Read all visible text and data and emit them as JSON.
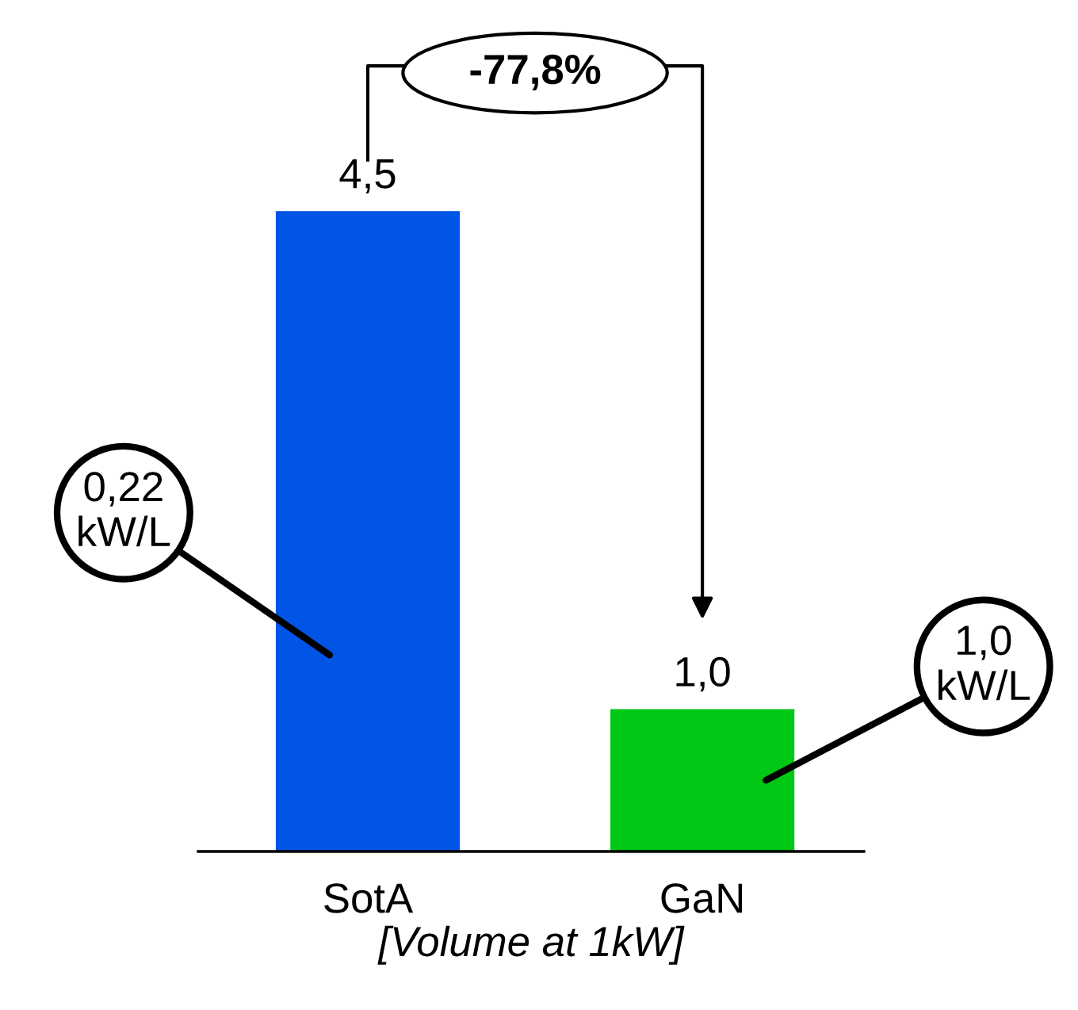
{
  "chart_data": {
    "type": "bar",
    "categories": [
      "SotA",
      "GaN"
    ],
    "values": [
      4.5,
      1.0
    ],
    "value_labels": [
      "4,5",
      "1,0"
    ],
    "colors": [
      "#0055e6",
      "#00c814"
    ],
    "xlabel": "[Volume at 1kW]",
    "annotations": [
      "0,22\nkW/L",
      "1,0\nkW/L",
      "-77,8%"
    ],
    "grid": false,
    "legend": false
  }
}
